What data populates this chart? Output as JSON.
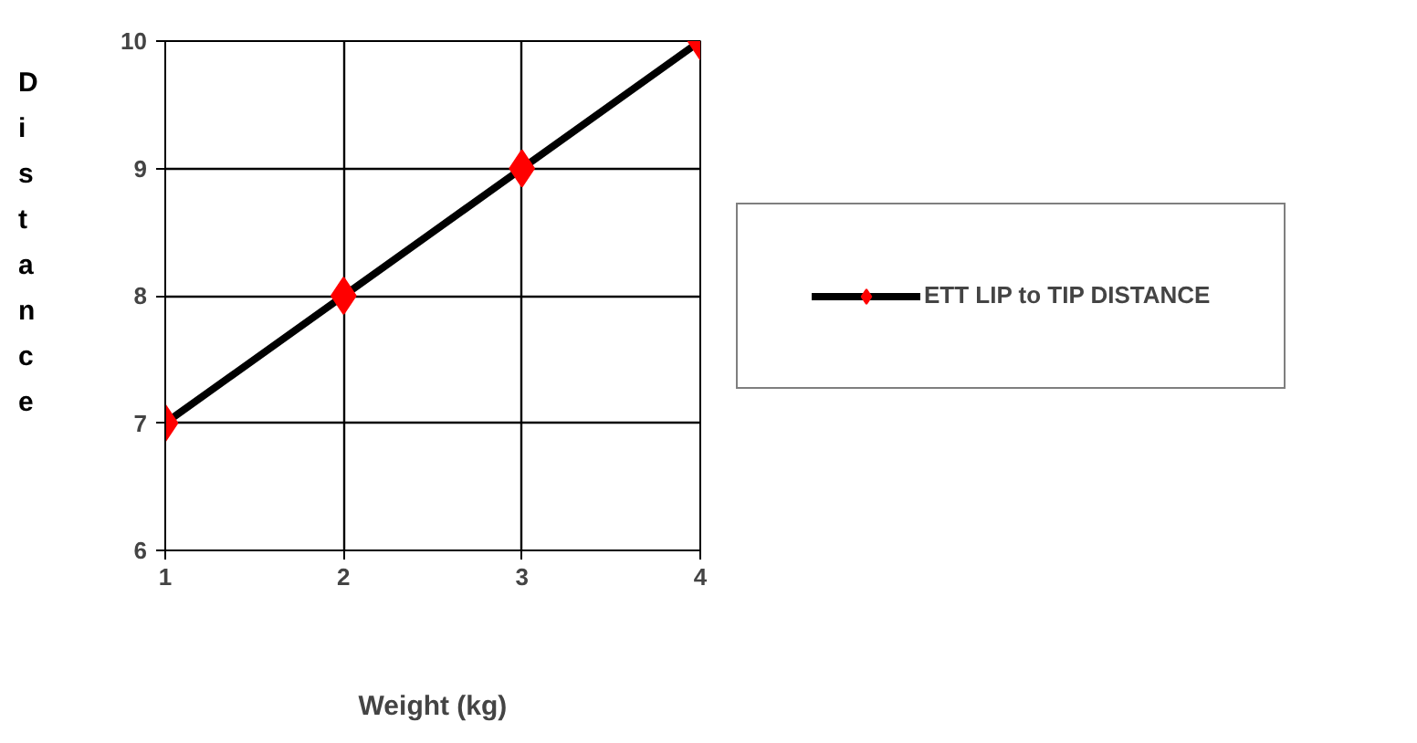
{
  "chart_data": {
    "type": "line",
    "xlabel": "Weight (kg)",
    "ylabel": "Distance",
    "x": [
      1,
      2,
      3,
      4
    ],
    "series": [
      {
        "name": "ETT LIP to TIP DISTANCE",
        "color": "#000000",
        "colors": [
          "#ff0000",
          "#ff0000",
          "#ff0000",
          "#ff0000"
        ],
        "values": [
          7,
          8,
          9,
          10
        ]
      }
    ],
    "xlim": [
      1,
      4
    ],
    "xticks": [
      1,
      2,
      3,
      4
    ],
    "ylim": [
      6,
      10
    ],
    "yticks": [
      6,
      7,
      8,
      9,
      10
    ],
    "grid": true,
    "legend": "right",
    "marker": "diamond",
    "line_style": "solid"
  }
}
